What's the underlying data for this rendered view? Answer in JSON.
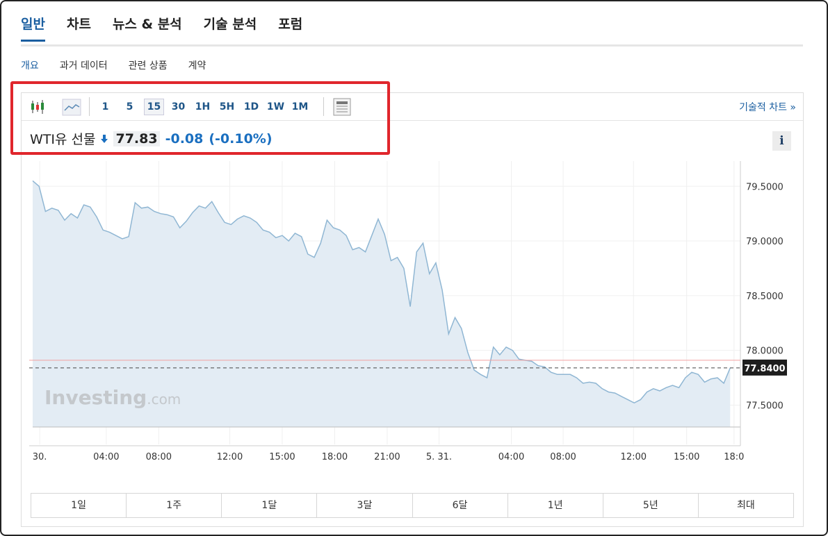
{
  "tabs": {
    "items": [
      "일반",
      "차트",
      "뉴스 & 분석",
      "기술 분석",
      "포럼"
    ],
    "active": 0
  },
  "subtabs": {
    "items": [
      "개요",
      "과거 데이터",
      "관련 상품",
      "계약"
    ],
    "active": 0
  },
  "toolbar": {
    "intervals": [
      "1",
      "5",
      "15",
      "30",
      "1H",
      "5H",
      "1D",
      "1W",
      "1M"
    ],
    "selected": 2,
    "link": "기술적 차트 »"
  },
  "quote": {
    "name": "WTI유 선물",
    "price": 77.83,
    "change": -0.08,
    "change_pct": "(-0.10%)"
  },
  "info_button": "i",
  "chart_data": {
    "type": "area",
    "color": "#8fb6d3",
    "fill": "#e3ecf4",
    "values": [
      79.55,
      79.5,
      79.27,
      79.3,
      79.28,
      79.19,
      79.25,
      79.21,
      79.33,
      79.31,
      79.22,
      79.1,
      79.08,
      79.05,
      79.02,
      79.04,
      79.35,
      79.3,
      79.31,
      79.27,
      79.25,
      79.24,
      79.22,
      79.12,
      79.18,
      79.26,
      79.32,
      79.3,
      79.36,
      79.26,
      79.17,
      79.15,
      79.2,
      79.23,
      79.21,
      79.17,
      79.1,
      79.08,
      79.03,
      79.05,
      79.0,
      79.07,
      79.04,
      78.88,
      78.85,
      78.98,
      79.19,
      79.12,
      79.1,
      79.05,
      78.92,
      78.94,
      78.9,
      79.05,
      79.2,
      79.06,
      78.82,
      78.85,
      78.75,
      78.4,
      78.9,
      78.98,
      78.7,
      78.8,
      78.55,
      78.15,
      78.3,
      78.2,
      77.98,
      77.82,
      77.78,
      77.75,
      78.03,
      77.96,
      78.03,
      78.0,
      77.92,
      77.91,
      77.9,
      77.86,
      77.85,
      77.8,
      77.78,
      77.78,
      77.78,
      77.75,
      77.7,
      77.71,
      77.7,
      77.65,
      77.62,
      77.61,
      77.58,
      77.55,
      77.52,
      77.55,
      77.62,
      77.65,
      77.63,
      77.66,
      77.68,
      77.66,
      77.75,
      77.8,
      77.78,
      77.71,
      77.74,
      77.75,
      77.7,
      77.84
    ],
    "xlim": [
      0,
      110.6
    ],
    "xticks": [
      {
        "value": 1.1,
        "label": "30."
      },
      {
        "value": 11.5,
        "label": "04:00"
      },
      {
        "value": 19.7,
        "label": "08:00"
      },
      {
        "value": 30.8,
        "label": "12:00"
      },
      {
        "value": 39.0,
        "label": "15:00"
      },
      {
        "value": 47.2,
        "label": "18:00"
      },
      {
        "value": 55.4,
        "label": "21:00"
      },
      {
        "value": 63.5,
        "label": "5. 31."
      },
      {
        "value": 74.8,
        "label": "04:00"
      },
      {
        "value": 82.9,
        "label": "08:00"
      },
      {
        "value": 93.9,
        "label": "12:00"
      },
      {
        "value": 102.2,
        "label": "15:00"
      },
      {
        "value": 109.6,
        "label": "18:0"
      }
    ],
    "ylim": [
      77.3,
      79.73
    ],
    "yticks": [
      {
        "value": 79.5,
        "label": "79.5000"
      },
      {
        "value": 79.0,
        "label": "79.0000"
      },
      {
        "value": 78.5,
        "label": "78.5000"
      },
      {
        "value": 78.0,
        "label": "78.0000"
      },
      {
        "value": 77.5,
        "label": "77.5000"
      }
    ],
    "last_price": {
      "value": 77.84,
      "label": "77.8400"
    },
    "reference_line": 77.91,
    "grid": true,
    "watermark": {
      "brand": "Investing",
      "suffix": ".com"
    }
  },
  "ranges": [
    "1일",
    "1주",
    "1달",
    "3달",
    "6달",
    "1년",
    "5년",
    "최대"
  ]
}
